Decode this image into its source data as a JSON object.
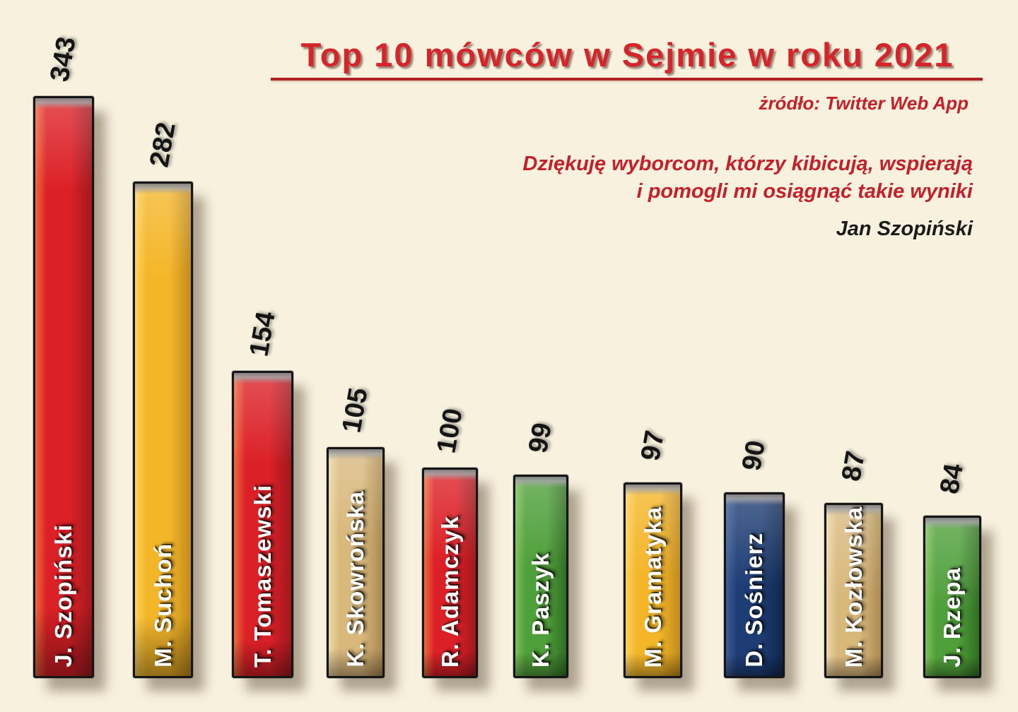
{
  "title": "Top 10 mówców w Sejmie w roku 2021",
  "source_label": "żródło: Twitter Web App",
  "quote": {
    "line1": "Dziękuję  wyborcom, którzy kibicują, wspierają",
    "line2": "i  pomogli mi osiągnąć takie wyniki",
    "author": "Jan Szopiński"
  },
  "colors": {
    "background": "#f8f1dd",
    "title_red": "#d6242b",
    "rule_red": "#af2025",
    "text_red": "#c2202a",
    "text_black": "#1b1b1b",
    "bar_border": "#151515",
    "label_white": "#ffffff",
    "red": {
      "base": "#dc2027",
      "light": "#ef6a3c",
      "dark": "#9e191e"
    },
    "yellow": {
      "base": "#f4b629",
      "light": "#fcd35a",
      "dark": "#c08a1c"
    },
    "tan": {
      "base": "#d9b87c",
      "light": "#ecd7a6",
      "dark": "#a9894f"
    },
    "green": {
      "base": "#4f9f3a",
      "light": "#7cc257",
      "dark": "#2f6e22"
    },
    "navy": {
      "base": "#1e3d74",
      "light": "#3a5e9a",
      "dark": "#10264e"
    }
  },
  "chart_data": {
    "type": "bar",
    "title": "Top 10 mówców w Sejmie w roku 2021",
    "source": "żródło: Twitter Web App",
    "categories": [
      "J. Szopiński",
      "M. Suchoń",
      "T. Tomaszewski",
      "K. Skowrońska",
      "R. Adamczyk",
      "K. Paszyk",
      "M. Gramatyka",
      "D. Sośnierz",
      "M. Kozłowska",
      "J. Rzepa"
    ],
    "values": [
      343,
      282,
      154,
      105,
      100,
      99,
      97,
      90,
      87,
      84
    ],
    "bar_colors": [
      "red",
      "yellow",
      "red",
      "tan",
      "red",
      "green",
      "yellow",
      "navy",
      "tan",
      "green"
    ],
    "value_labels": [
      "343",
      "282",
      "154",
      "105",
      "100",
      "99",
      "97",
      "90",
      "87",
      "84"
    ],
    "xlabel": "",
    "ylabel": "",
    "grid": false,
    "legend": false,
    "annotation": "Dziękuję wyborcom, którzy kibicują, wspierają i pomogli mi osiągnąć takie wyniki — Jan Szopiński"
  }
}
